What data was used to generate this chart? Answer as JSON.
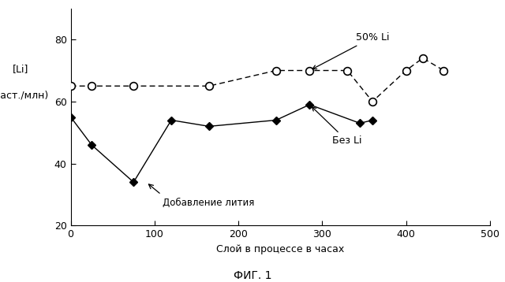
{
  "solid_x": [
    0,
    25,
    75,
    120,
    165,
    245,
    285,
    345,
    360
  ],
  "solid_y": [
    55,
    46,
    34,
    54,
    52,
    54,
    59,
    53,
    54
  ],
  "dashed_x": [
    0,
    25,
    75,
    165,
    245,
    285,
    330,
    360,
    400,
    420,
    445
  ],
  "dashed_y": [
    65,
    65,
    65,
    65,
    70,
    70,
    70,
    60,
    70,
    74,
    70
  ],
  "solid_line_color": "#000000",
  "dashed_line_color": "#000000",
  "xlabel": "Слой в процессе в часах",
  "ylabel_line1": "[Li]",
  "ylabel_line2": "(част./млн)",
  "xlim": [
    0,
    500
  ],
  "ylim": [
    20,
    90
  ],
  "yticks": [
    20,
    40,
    60,
    80
  ],
  "xticks": [
    0,
    100,
    200,
    300,
    400,
    500
  ],
  "annotation_text": "Добавление лития",
  "label_50li": "50% Li",
  "label_bez": "Без Li",
  "fig_label": "ФИГ. 1",
  "background_color": "#ffffff"
}
